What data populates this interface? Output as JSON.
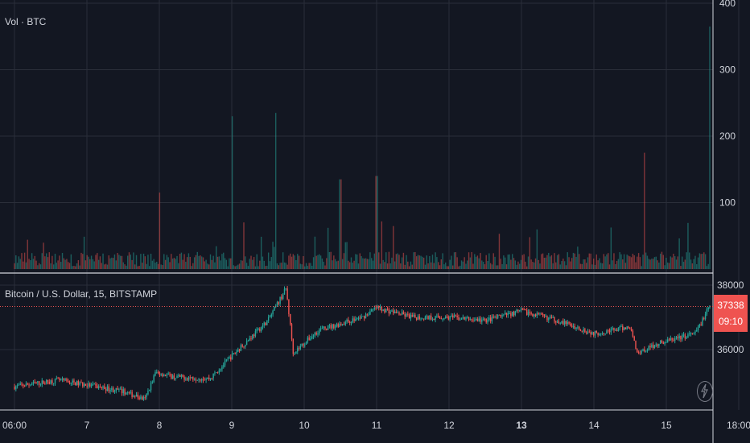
{
  "volume_pane": {
    "label": "Vol · BTC"
  },
  "price_pane": {
    "label": "Bitcoin / U.S. Dollar, 15, BITSTAMP"
  },
  "last_price": {
    "value": "37338",
    "countdown": "09:10"
  },
  "colors": {
    "background": "#131722",
    "grid": "#2a2e39",
    "up": "#26a69a",
    "down": "#ef5350",
    "text": "#d1d4dc"
  },
  "icons": {
    "flash": "lightning-icon"
  },
  "chart_data": [
    {
      "type": "bar",
      "ylabel": "Vol · BTC",
      "yticks": [
        "400",
        "300",
        "200",
        "100"
      ],
      "ylim": [
        0,
        400
      ],
      "x": [
        "06:00",
        "7",
        "8",
        "9",
        "10",
        "11",
        "12",
        "13",
        "14",
        "15",
        "18:00"
      ],
      "approx_spikes": [
        {
          "x": "8",
          "value": 115
        },
        {
          "x": "9",
          "value": 230
        },
        {
          "x": "9.6",
          "value": 235
        },
        {
          "x": "10.5",
          "value": 135
        },
        {
          "x": "11",
          "value": 140
        },
        {
          "x": "14.7",
          "value": 175
        },
        {
          "x": "18:00",
          "value": 365
        }
      ]
    },
    {
      "type": "line",
      "title": "Bitcoin / U.S. Dollar, 15, BITSTAMP",
      "yticks": [
        "38000",
        "36000"
      ],
      "ylim": [
        33900,
        38250
      ],
      "x": [
        "06:00",
        "7",
        "8",
        "9",
        "10",
        "11",
        "12",
        "13",
        "14",
        "15",
        "18:00"
      ],
      "series": [
        {
          "values": [
            [
              0,
              34850
            ],
            [
              0.6,
              35050
            ],
            [
              1.0,
              34900
            ],
            [
              1.5,
              34700
            ],
            [
              1.8,
              34450
            ],
            [
              1.95,
              35300
            ],
            [
              2.2,
              35150
            ],
            [
              2.7,
              35100
            ],
            [
              3.0,
              35800
            ],
            [
              3.5,
              36900
            ],
            [
              3.75,
              37900
            ],
            [
              3.85,
              35900
            ],
            [
              4.2,
              36600
            ],
            [
              4.8,
              37000
            ],
            [
              5.0,
              37300
            ],
            [
              5.5,
              37000
            ],
            [
              6.0,
              37000
            ],
            [
              6.5,
              36900
            ],
            [
              7.0,
              37200
            ],
            [
              7.5,
              36900
            ],
            [
              8.0,
              36500
            ],
            [
              8.5,
              36700
            ],
            [
              8.6,
              35900
            ],
            [
              8.9,
              36200
            ],
            [
              9.4,
              36500
            ],
            [
              9.6,
              37338
            ]
          ]
        }
      ]
    }
  ]
}
